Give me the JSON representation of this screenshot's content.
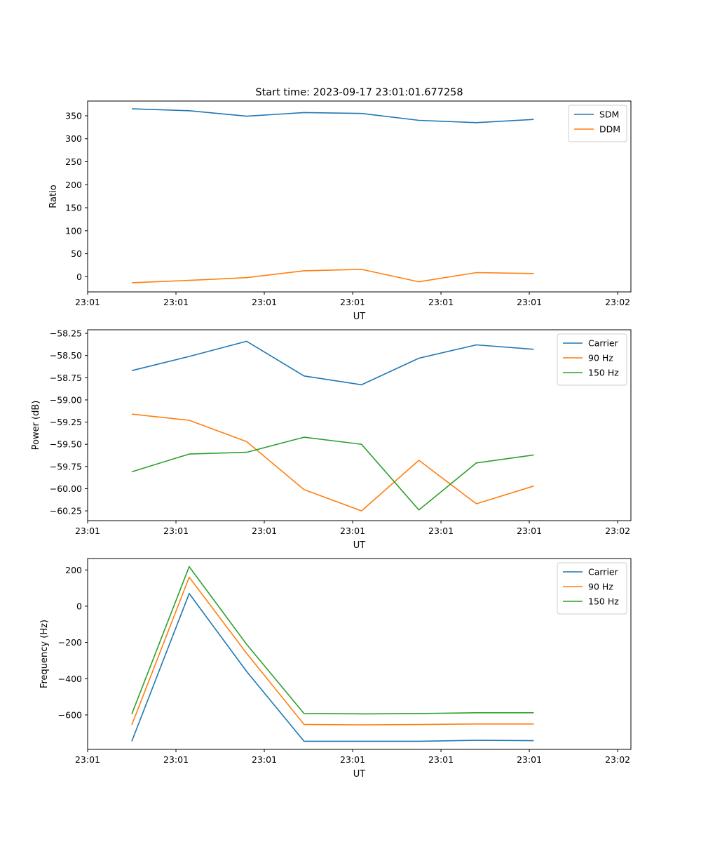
{
  "chart_data": [
    {
      "type": "line",
      "title": "Start time: 2023-09-17 23:01:01.677258",
      "xlabel": "UT",
      "ylabel": "Ratio",
      "xticks": [
        "23:01",
        "23:01",
        "23:01",
        "23:01",
        "23:01",
        "23:01",
        "23:02"
      ],
      "xlim": [
        0,
        6.15
      ],
      "x": [
        0.5,
        1.15,
        1.8,
        2.45,
        3.1,
        3.75,
        4.4,
        5.05
      ],
      "yticks": [
        0,
        50,
        100,
        150,
        200,
        250,
        300,
        350
      ],
      "ylim": [
        -33,
        382
      ],
      "legend": "top-right",
      "series": [
        {
          "name": "SDM",
          "color": "#1f77b4",
          "values": [
            365,
            361,
            349,
            357,
            355,
            340,
            335,
            342
          ]
        },
        {
          "name": "DDM",
          "color": "#ff7f0e",
          "values": [
            -13,
            -8,
            -2,
            13,
            16,
            -11,
            9,
            7
          ]
        }
      ]
    },
    {
      "type": "line",
      "title": "",
      "xlabel": "UT",
      "ylabel": "Power (dB)",
      "xticks": [
        "23:01",
        "23:01",
        "23:01",
        "23:01",
        "23:01",
        "23:01",
        "23:02"
      ],
      "xlim": [
        0,
        6.15
      ],
      "x": [
        0.5,
        1.15,
        1.8,
        2.45,
        3.1,
        3.75,
        4.4,
        5.05
      ],
      "yticks": [
        -58.25,
        -58.5,
        -58.75,
        -59.0,
        -59.25,
        -59.5,
        -59.75,
        -60.0,
        -60.25
      ],
      "ytick_labels": [
        "−58.25",
        "−58.50",
        "−58.75",
        "−59.00",
        "−59.25",
        "−59.50",
        "−59.75",
        "−60.00",
        "−60.25"
      ],
      "ylim": [
        -60.36,
        -58.21
      ],
      "legend": "top-right",
      "series": [
        {
          "name": "Carrier",
          "color": "#1f77b4",
          "values": [
            -58.67,
            -58.51,
            -58.34,
            -58.73,
            -58.83,
            -58.53,
            -58.38,
            -58.43
          ]
        },
        {
          "name": "90 Hz",
          "color": "#ff7f0e",
          "values": [
            -59.16,
            -59.23,
            -59.47,
            -60.01,
            -60.25,
            -59.68,
            -60.17,
            -59.97
          ]
        },
        {
          "name": "150 Hz",
          "color": "#2ca02c",
          "values": [
            -59.81,
            -59.61,
            -59.59,
            -59.42,
            -59.5,
            -60.24,
            -59.71,
            -59.62
          ]
        }
      ]
    },
    {
      "type": "line",
      "title": "",
      "xlabel": "UT",
      "ylabel": "Frequency (Hz)",
      "xticks": [
        "23:01",
        "23:01",
        "23:01",
        "23:01",
        "23:01",
        "23:01",
        "23:02"
      ],
      "xlim": [
        0,
        6.15
      ],
      "x": [
        0.5,
        1.15,
        1.8,
        2.45,
        3.1,
        3.75,
        4.4,
        5.05
      ],
      "yticks": [
        200,
        0,
        -200,
        -400,
        -600
      ],
      "ytick_labels": [
        "200",
        "0",
        "−200",
        "−400",
        "−600"
      ],
      "ylim": [
        -790,
        263
      ],
      "legend": "top-right",
      "series": [
        {
          "name": "Carrier",
          "color": "#1f77b4",
          "values": [
            -745,
            70,
            -360,
            -745,
            -745,
            -745,
            -740,
            -742
          ]
        },
        {
          "name": "90 Hz",
          "color": "#ff7f0e",
          "values": [
            -655,
            160,
            -260,
            -652,
            -655,
            -653,
            -650,
            -650
          ]
        },
        {
          "name": "150 Hz",
          "color": "#2ca02c",
          "values": [
            -595,
            218,
            -210,
            -592,
            -594,
            -592,
            -588,
            -588
          ]
        }
      ]
    }
  ]
}
